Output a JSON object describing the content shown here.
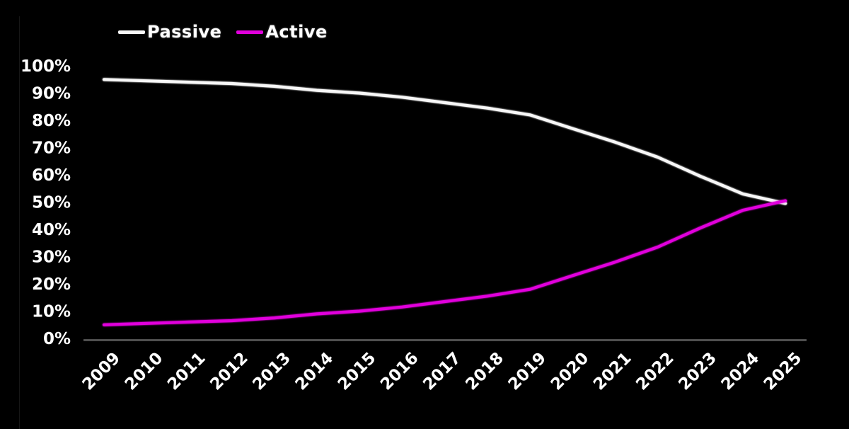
{
  "page": {
    "background_color": "#000000",
    "text_color": "#ffffff"
  },
  "chart_data": {
    "type": "line",
    "title": "",
    "xlabel": "",
    "ylabel": "",
    "x": [
      "2009",
      "2010",
      "2011",
      "2012",
      "2013",
      "2014",
      "2015",
      "2016",
      "2017",
      "2018",
      "2019",
      "2020",
      "2021",
      "2022",
      "2023",
      "2024",
      "2025"
    ],
    "series": [
      {
        "name": "Passive",
        "color": "#f7f7f7",
        "values": [
          95,
          94.5,
          94,
          93.5,
          92.5,
          91,
          90,
          88.5,
          86.5,
          84.5,
          82,
          77,
          72,
          66.5,
          59.5,
          53,
          49.5
        ]
      },
      {
        "name": "Active",
        "color": "#e100dc",
        "values": [
          5,
          5.5,
          6,
          6.5,
          7.5,
          9,
          10,
          11.5,
          13.5,
          15.5,
          18,
          23,
          28,
          33.5,
          40.5,
          47,
          50.5
        ]
      }
    ],
    "ylim": [
      0,
      100
    ],
    "y_ticks": [
      {
        "value": 0,
        "label": "0%"
      },
      {
        "value": 10,
        "label": "10%"
      },
      {
        "value": 20,
        "label": "20%"
      },
      {
        "value": 30,
        "label": "30%"
      },
      {
        "value": 40,
        "label": "40%"
      },
      {
        "value": 50,
        "label": "50%"
      },
      {
        "value": 60,
        "label": "60%"
      },
      {
        "value": 70,
        "label": "70%"
      },
      {
        "value": 80,
        "label": "80%"
      },
      {
        "value": 90,
        "label": "90%"
      },
      {
        "value": 100,
        "label": "100%"
      }
    ],
    "x_tick_rotation_deg": 45,
    "grid": false,
    "legend_position": "top-left",
    "axis_line_color": "#4f4f4f",
    "tick_label_color": "#ffffff"
  }
}
